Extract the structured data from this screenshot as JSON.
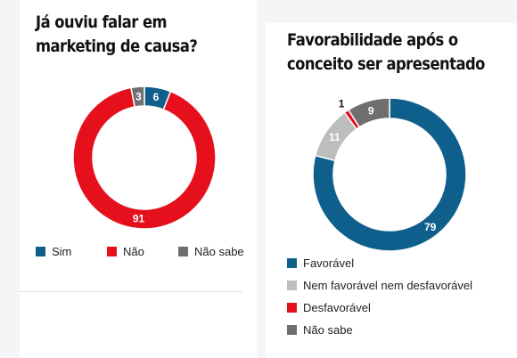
{
  "charts": {
    "left": {
      "title_lines": [
        "Já ouviu falar em",
        "marketing de causa?"
      ]
    },
    "right": {
      "title_lines": [
        "Favorabilidade após o",
        "conceito ser apresentado"
      ]
    }
  },
  "chart_data": [
    {
      "type": "pie",
      "donut": true,
      "title": "Já ouviu falar em marketing de causa?",
      "categories": [
        "Sim",
        "Não",
        "Não sabe"
      ],
      "values": [
        6,
        91,
        3
      ],
      "colors": [
        "#0f5f8c",
        "#e5101c",
        "#6f6f6f"
      ],
      "legend_position": "bottom"
    },
    {
      "type": "pie",
      "donut": true,
      "title": "Favorabilidade após o conceito ser apresentado",
      "categories": [
        "Favorável",
        "Nem favorável nem desfavorável",
        "Desfavorável",
        "Não sabe"
      ],
      "values": [
        79,
        11,
        1,
        9
      ],
      "colors": [
        "#0f5f8c",
        "#bdbdbd",
        "#e5101c",
        "#6f6f6f"
      ],
      "legend_position": "bottom"
    }
  ]
}
